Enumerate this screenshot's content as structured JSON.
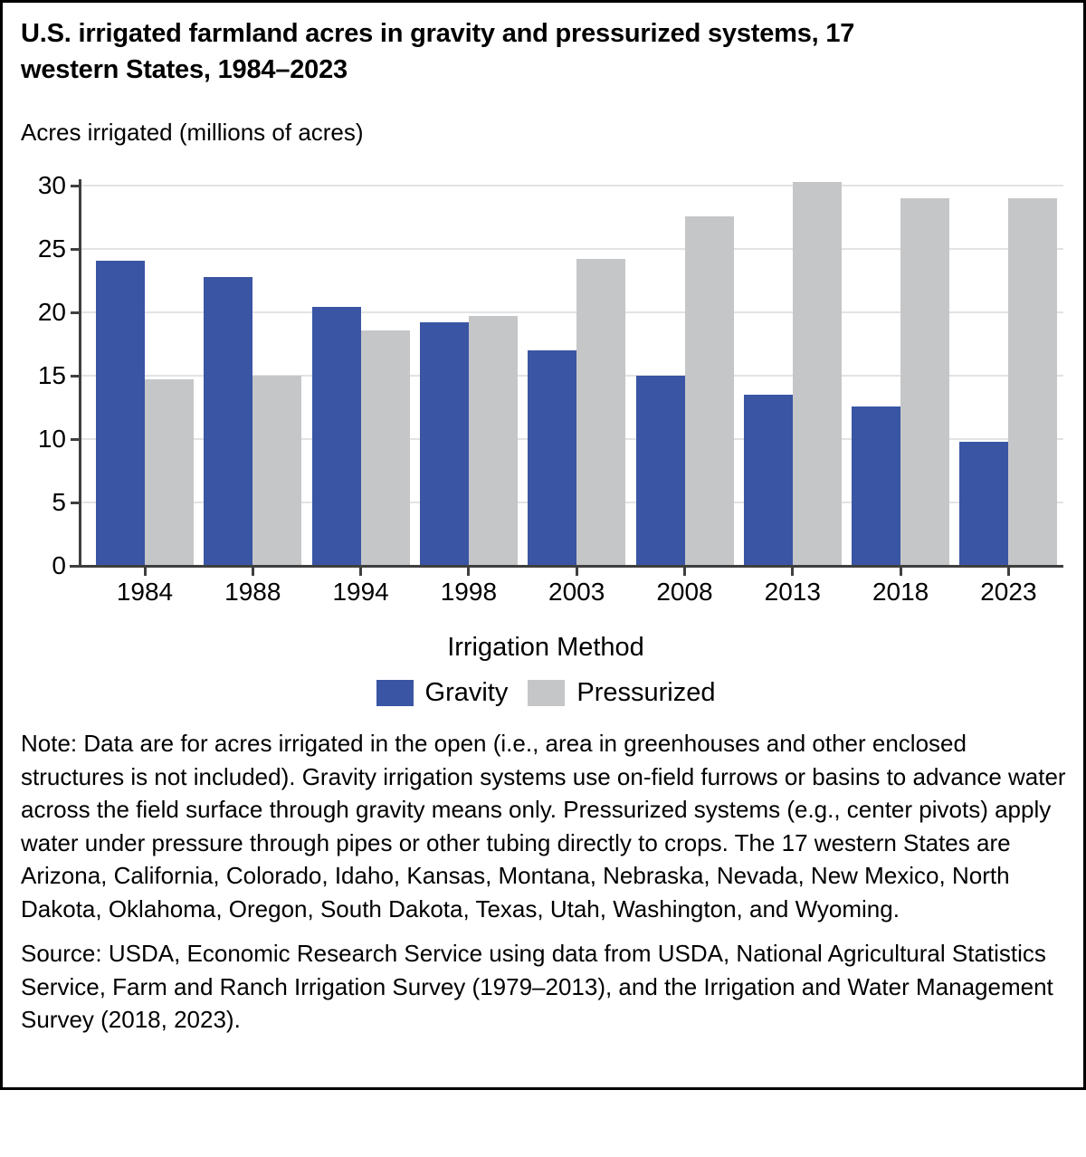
{
  "figure": {
    "title_lines": [
      "U.S. irrigated farmland acres in gravity and pressurized systems, 17",
      "western States, 1984–2023"
    ],
    "y_axis_title": "Acres irrigated (millions of acres)",
    "x_axis_group_title": "Irrigation Method",
    "note": "Note: Data are for acres irrigated in the open (i.e., area in greenhouses and other enclosed structures is not included). Gravity irrigation systems use on-field furrows or basins to advance water across the field surface through gravity means only. Pressurized systems (e.g., center pivots) apply water under pressure through pipes or other tubing directly to crops. The 17 western States are Arizona, California, Colorado, Idaho, Kansas, Montana, Nebraska, Nevada, New Mexico, North Dakota, Oklahoma, Oregon, South Dakota, Texas, Utah, Washington, and Wyoming.",
    "source": "Source: USDA, Economic Research Service using data from USDA, National Agricultural Statistics Service, Farm and Ranch Irrigation Survey (1979–2013), and the Irrigation and Water Management Survey (2018, 2023)."
  },
  "chart_data": {
    "type": "bar",
    "title": "U.S. irrigated farmland acres in gravity and pressurized systems, 17 western States, 1984–2023",
    "xlabel": "Irrigation Method",
    "ylabel": "Acres irrigated (millions of acres)",
    "categories": [
      "1984",
      "1988",
      "1994",
      "1998",
      "2003",
      "2008",
      "2013",
      "2018",
      "2023"
    ],
    "series": [
      {
        "name": "Gravity",
        "color": "#3A55A4",
        "values": [
          24.1,
          22.8,
          20.4,
          19.2,
          17.0,
          15.0,
          13.5,
          12.6,
          9.8
        ]
      },
      {
        "name": "Pressurized",
        "color": "#C5C6C8",
        "values": [
          14.7,
          15.0,
          18.6,
          19.7,
          24.2,
          27.6,
          30.3,
          29.0,
          29.0
        ]
      }
    ],
    "ylim": [
      0,
      30.5
    ],
    "yticks": [
      0,
      5,
      10,
      15,
      20,
      25,
      30
    ],
    "grid": true,
    "legend_position": "bottom",
    "colors": {
      "gravity_blue": "#3A55A4",
      "pressurized_gray": "#C5C6C8",
      "gridline": "#E3E3E3",
      "axis": "#3F3F3F",
      "border": "#000000"
    }
  }
}
